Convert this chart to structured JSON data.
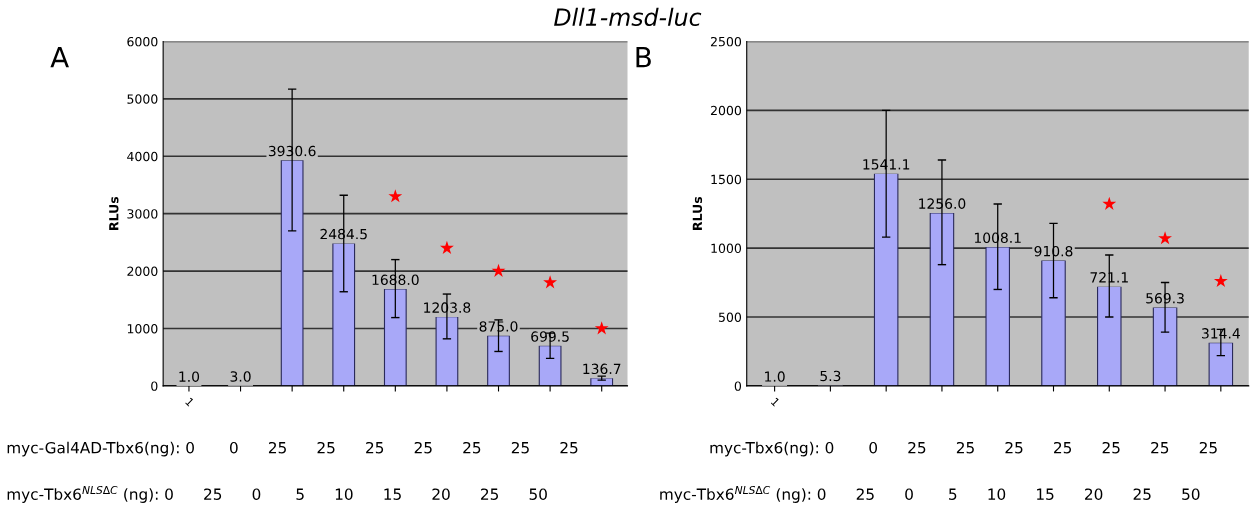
{
  "chart_data": [
    {
      "type": "bar",
      "title": "Dll1-msd-luc",
      "ylabel": "RLUs",
      "categories": [
        "1",
        null,
        null,
        null,
        null,
        null,
        null,
        null,
        null
      ],
      "series": [
        {
          "color": "#a8a8f8",
          "values": [
            1.0,
            3.0,
            3930.6,
            2484.5,
            1688.0,
            1203.8,
            875.0,
            699.5,
            136.7
          ],
          "value_labels": [
            "1.0",
            "3.0",
            "3930.6",
            "2484.5",
            "1688.0",
            "1203.8",
            "875.0",
            "699.5",
            "136.7"
          ],
          "errors": [
            null,
            null,
            [
              2700,
              5170
            ],
            [
              1640,
              3320
            ],
            [
              1190,
              2200
            ],
            [
              820,
              1600
            ],
            [
              600,
              1150
            ],
            [
              480,
              920
            ],
            [
              100,
              170
            ]
          ]
        },
        {
          "type": "scatter",
          "color": "#ff0000",
          "marker": "star",
          "values": [
            null,
            null,
            null,
            null,
            3300,
            2400,
            2000,
            1800,
            1000
          ]
        }
      ],
      "ylim": [
        0,
        6000
      ],
      "yticks": [
        0,
        1000,
        2000,
        3000,
        4000,
        5000,
        6000
      ],
      "grid": "y",
      "annotations": [
        "A",
        "myc-Gal4AD-Tbx6(ng): 0       0      25      25      25      25      25      25      25",
        "myc-Tbx6$^{NLSΔC}$ (ng): 0      25      0       5      10      15      20      25      50"
      ]
    },
    {
      "type": "bar",
      "ylabel": "RLUs",
      "categories": [
        "1",
        null,
        null,
        null,
        null,
        null,
        null,
        null,
        null
      ],
      "series": [
        {
          "color": "#a8a8f8",
          "values": [
            1.0,
            5.3,
            1541.1,
            1256.0,
            1008.1,
            910.8,
            721.1,
            569.3,
            314.4
          ],
          "value_labels": [
            "1.0",
            "5.3",
            "1541.1",
            "1256.0",
            "1008.1",
            "910.8",
            "721.1",
            "569.3",
            "314.4"
          ],
          "errors": [
            null,
            null,
            [
              1080,
              2000
            ],
            [
              880,
              1640
            ],
            [
              700,
              1320
            ],
            [
              640,
              1180
            ],
            [
              500,
              950
            ],
            [
              390,
              750
            ],
            [
              220,
              410
            ]
          ]
        },
        {
          "type": "scatter",
          "color": "#ff0000",
          "marker": "star",
          "values": [
            null,
            null,
            null,
            null,
            null,
            null,
            1320,
            1070,
            760
          ]
        }
      ],
      "ylim": [
        0,
        2500
      ],
      "yticks": [
        0,
        500,
        1000,
        1500,
        2000,
        2500
      ],
      "grid": "y",
      "annotations": [
        "B",
        "myc-Tbx6(ng): 0       0      25      25      25      25      25      25      25",
        "myc-Tbx6$^{NLSΔC}$ (ng): 0      25      0       5      10      15      20      25      50"
      ]
    }
  ]
}
